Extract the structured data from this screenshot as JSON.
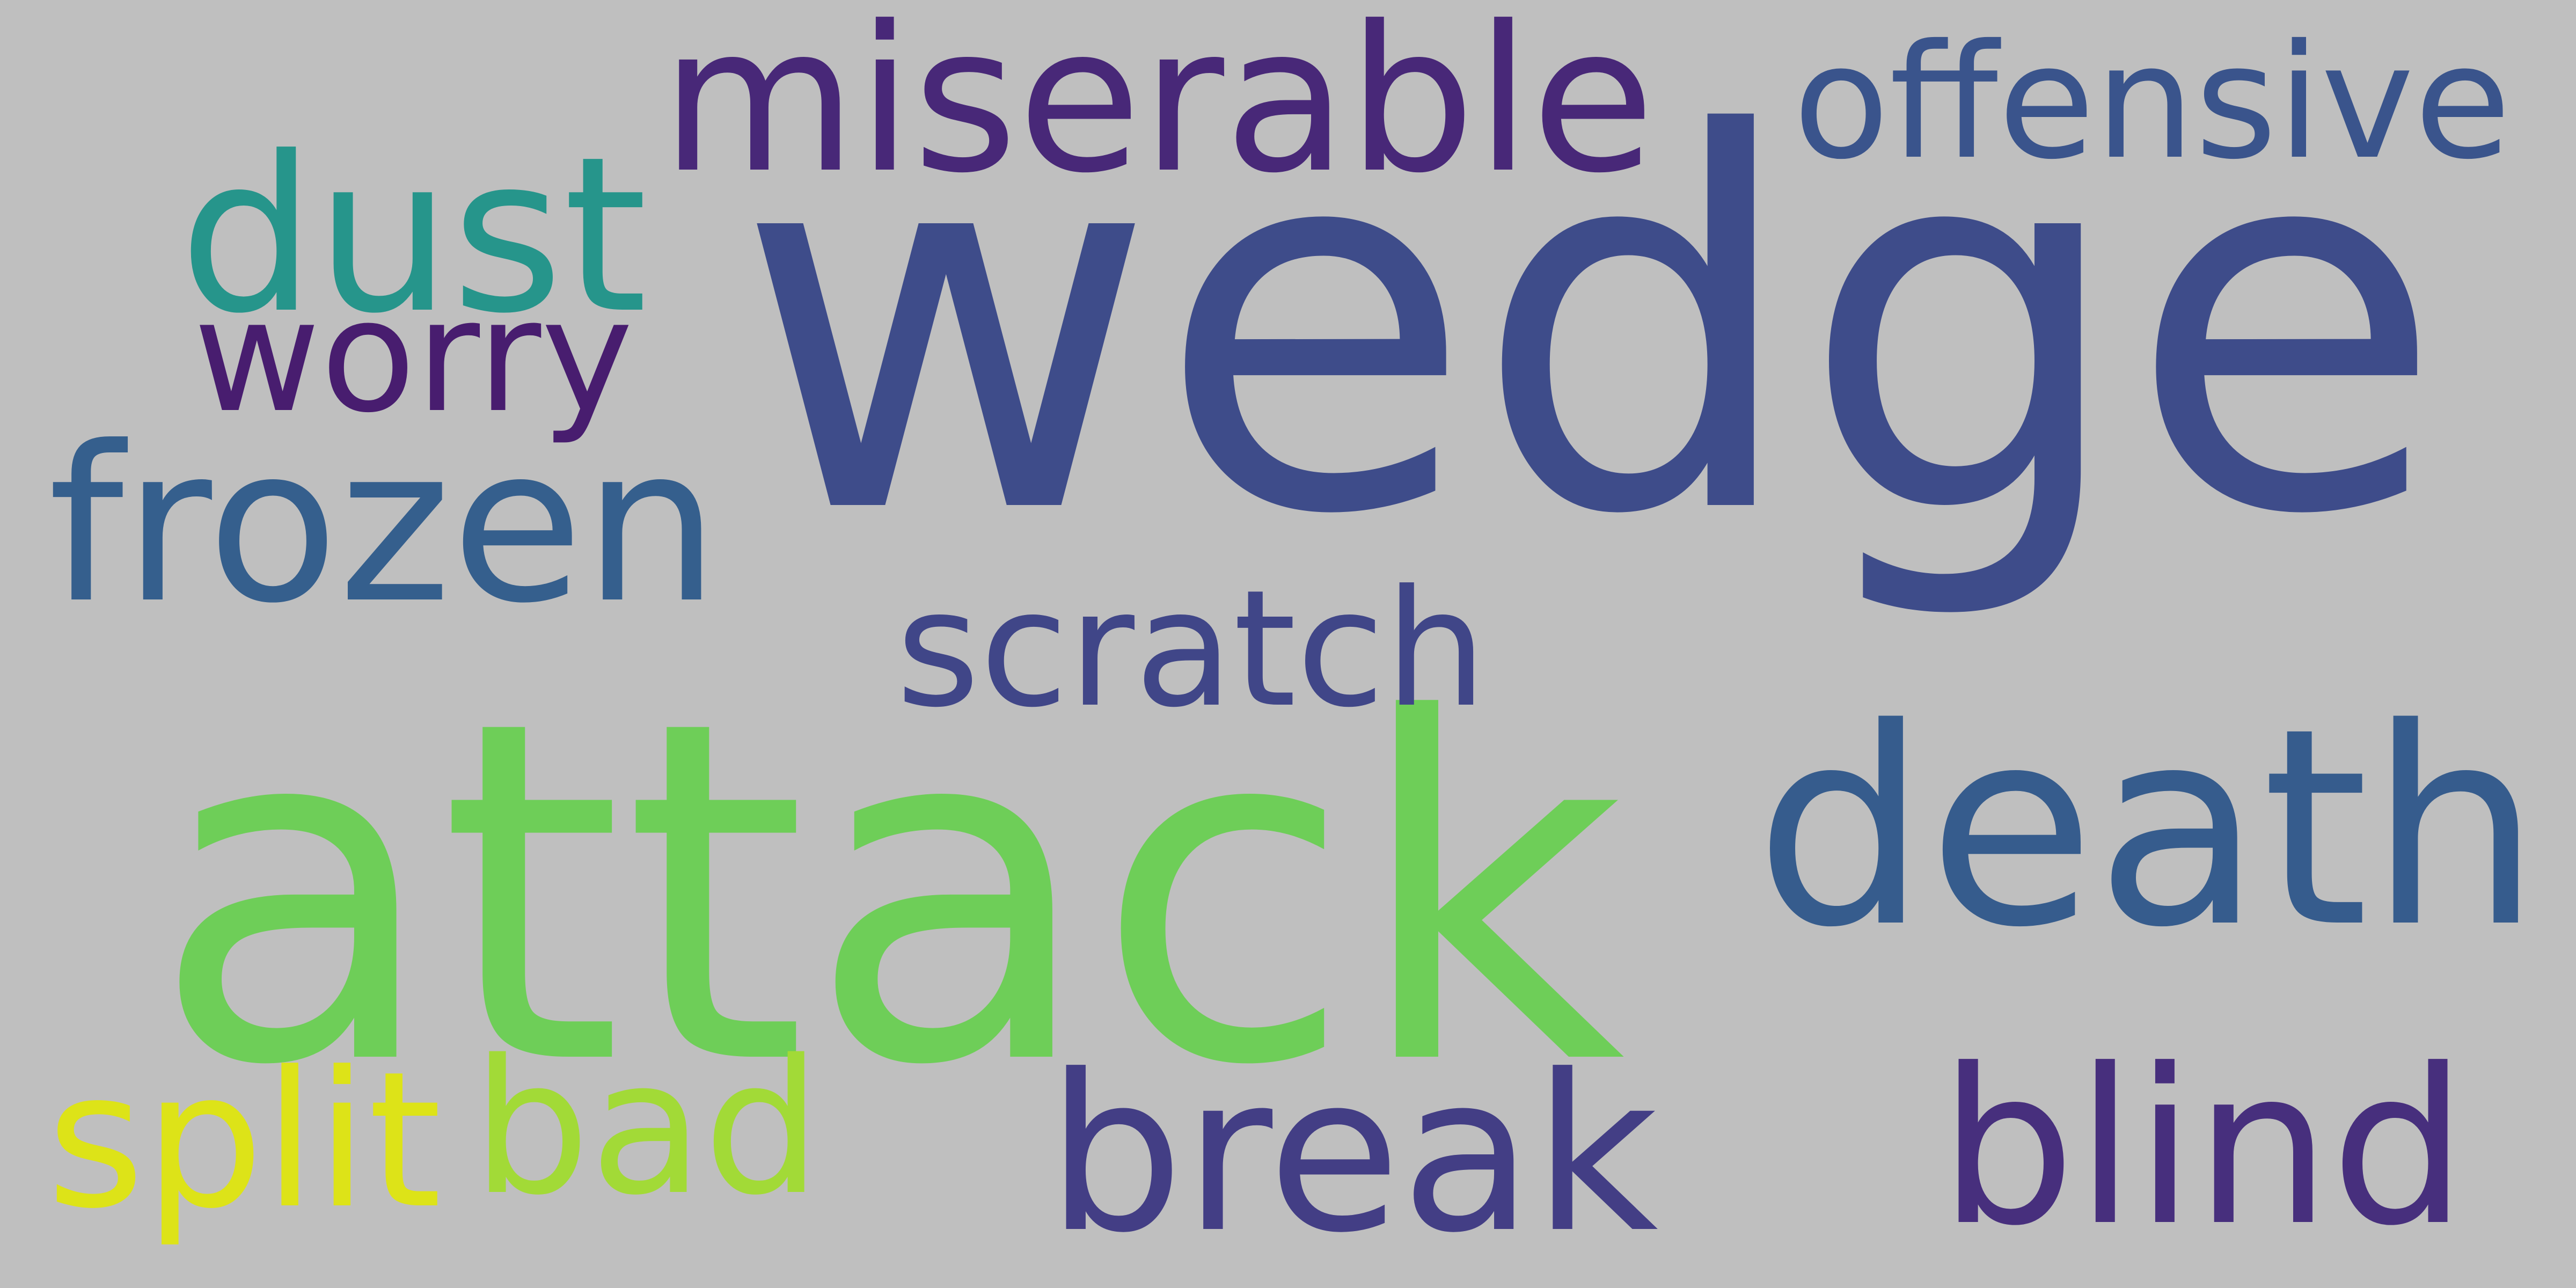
{
  "background_color": "#bfbfbf",
  "words": [
    {
      "text": "wedge",
      "color": "#3e4c8a"
    },
    {
      "text": "attack",
      "color": "#6ece58"
    },
    {
      "text": "death",
      "color": "#365c8d"
    },
    {
      "text": "frozen",
      "color": "#355f8d"
    },
    {
      "text": "dust",
      "color": "#26958b"
    },
    {
      "text": "miserable",
      "color": "#482878"
    },
    {
      "text": "offensive",
      "color": "#3a548c"
    },
    {
      "text": "worry",
      "color": "#481d6f"
    },
    {
      "text": "scratch",
      "color": "#404688"
    },
    {
      "text": "break",
      "color": "#433e85"
    },
    {
      "text": "blind",
      "color": "#472f7d"
    },
    {
      "text": "split",
      "color": "#dde318"
    },
    {
      "text": "bad",
      "color": "#a2da37"
    }
  ]
}
